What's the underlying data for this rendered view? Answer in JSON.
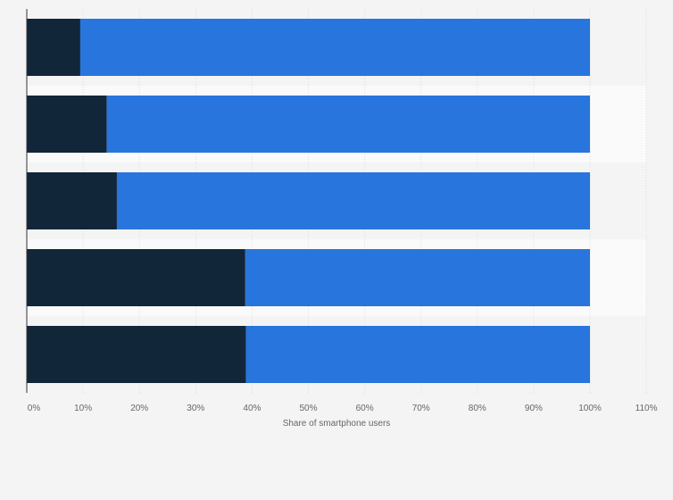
{
  "chart_data": {
    "type": "bar",
    "orientation": "horizontal",
    "stacked": true,
    "categories": [
      "",
      "",
      "",
      "",
      ""
    ],
    "series": [
      {
        "values": [
          9.5,
          14.2,
          16.0,
          38.8,
          38.9
        ],
        "color": "#12263a"
      },
      {
        "values": [
          90.5,
          85.8,
          84.0,
          61.2,
          61.1
        ],
        "color": "#2876dd"
      }
    ],
    "xlabel": "Share of smartphone users",
    "xlim": [
      0,
      110
    ],
    "xticks": [
      "0%",
      "10%",
      "20%",
      "30%",
      "40%",
      "50%",
      "60%",
      "70%",
      "80%",
      "90%",
      "100%",
      "110%"
    ],
    "grid": "vertical dashed",
    "legend": "none",
    "colors": {
      "background": "#f4f4f4",
      "band": "#fafafa",
      "grid": "#dddddd",
      "text": "#666666"
    }
  }
}
